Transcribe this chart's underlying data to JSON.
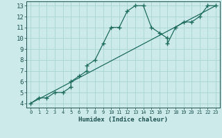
{
  "curved_x": [
    0,
    1,
    2,
    3,
    4,
    5,
    5,
    6,
    7,
    7,
    8,
    9,
    10,
    11,
    12,
    13,
    14,
    15,
    16,
    17,
    17,
    18,
    19,
    20,
    21,
    22,
    23
  ],
  "curved_y": [
    4.0,
    4.5,
    4.5,
    5.0,
    5.0,
    5.5,
    6.0,
    6.5,
    7.0,
    7.5,
    8.0,
    9.5,
    11.0,
    11.0,
    12.5,
    13.0,
    13.0,
    11.0,
    10.5,
    10.0,
    9.5,
    11.0,
    11.5,
    11.5,
    12.0,
    13.0,
    13.0
  ],
  "line_x": [
    0,
    23
  ],
  "line_y": [
    4.0,
    13.0
  ],
  "xlabel": "Humidex (Indice chaleur)",
  "xlim": [
    -0.5,
    23.5
  ],
  "ylim": [
    3.6,
    13.4
  ],
  "xticks": [
    0,
    1,
    2,
    3,
    4,
    5,
    6,
    7,
    8,
    9,
    10,
    11,
    12,
    13,
    14,
    15,
    16,
    17,
    18,
    19,
    20,
    21,
    22,
    23
  ],
  "yticks": [
    4,
    5,
    6,
    7,
    8,
    9,
    10,
    11,
    12,
    13
  ],
  "line_color": "#1e6b5e",
  "bg_color": "#cceaea",
  "grid_color": "#aad4d4",
  "text_color": "#1e5050",
  "marker": "+",
  "markersize": 4,
  "linewidth": 0.9
}
